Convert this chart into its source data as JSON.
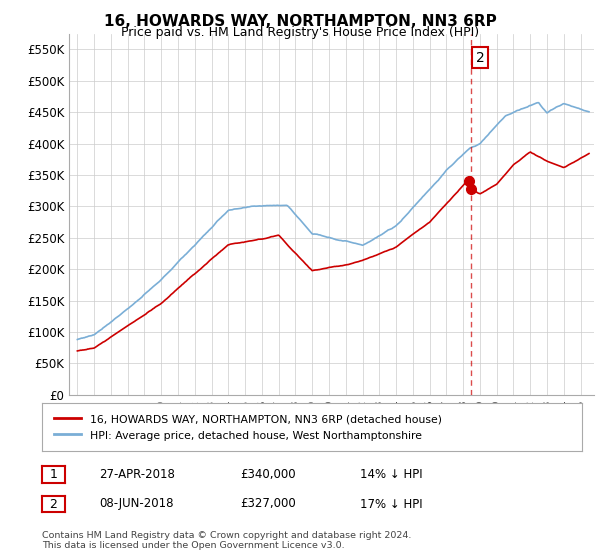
{
  "title": "16, HOWARDS WAY, NORTHAMPTON, NN3 6RP",
  "subtitle": "Price paid vs. HM Land Registry's House Price Index (HPI)",
  "legend_label_red": "16, HOWARDS WAY, NORTHAMPTON, NN3 6RP (detached house)",
  "legend_label_blue": "HPI: Average price, detached house, West Northamptonshire",
  "table_rows": [
    {
      "num": "1",
      "date": "27-APR-2018",
      "price": "£340,000",
      "hpi": "14% ↓ HPI"
    },
    {
      "num": "2",
      "date": "08-JUN-2018",
      "price": "£327,000",
      "hpi": "17% ↓ HPI"
    }
  ],
  "footnote": "Contains HM Land Registry data © Crown copyright and database right 2024.\nThis data is licensed under the Open Government Licence v3.0.",
  "ylim": [
    0,
    575000
  ],
  "yticks": [
    0,
    50000,
    100000,
    150000,
    200000,
    250000,
    300000,
    350000,
    400000,
    450000,
    500000,
    550000
  ],
  "ytick_labels": [
    "£0",
    "£50K",
    "£100K",
    "£150K",
    "£200K",
    "£250K",
    "£300K",
    "£350K",
    "£400K",
    "£450K",
    "£500K",
    "£550K"
  ],
  "red_color": "#cc0000",
  "blue_color": "#7aaed6",
  "annotation_box_color": "#cc0000",
  "grid_color": "#cccccc",
  "bg_color": "#ffffff",
  "plot_bg": "#ffffff",
  "point1_x": 2018.32,
  "point1_y": 340000,
  "point2_x": 2018.45,
  "point2_y": 327000,
  "vline_x": 2018.45,
  "vline_color": "#cc0000",
  "xlim_left": 1994.5,
  "xlim_right": 2025.8
}
